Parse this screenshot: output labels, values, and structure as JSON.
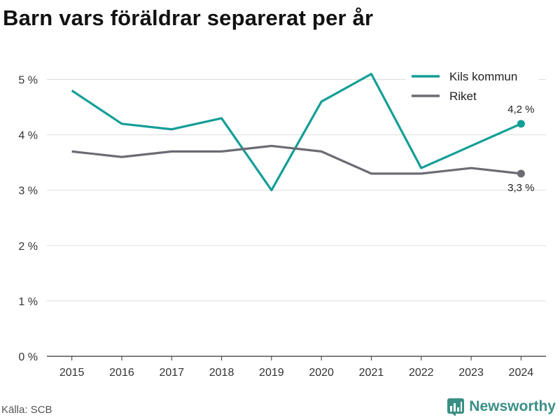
{
  "title": "Barn vars föräldrar separerat per år",
  "source": "Källa: SCB",
  "brand": {
    "name": "Newsworthy",
    "icon": "bar-chart-logo-icon",
    "color": "#3a8f85"
  },
  "chart_data": {
    "type": "line",
    "title": "Barn vars föräldrar separerat per år",
    "x": [
      "2015",
      "2016",
      "2017",
      "2018",
      "2019",
      "2020",
      "2021",
      "2022",
      "2023",
      "2024"
    ],
    "series": [
      {
        "name": "Kils kommun",
        "color": "#139e96",
        "values": [
          4.8,
          4.2,
          4.1,
          4.3,
          3.0,
          4.6,
          5.1,
          3.4,
          3.8,
          4.2
        ]
      },
      {
        "name": "Riket",
        "color": "#6b6b73",
        "values": [
          3.7,
          3.6,
          3.7,
          3.7,
          3.8,
          3.7,
          3.3,
          3.3,
          3.4,
          3.3
        ]
      }
    ],
    "end_labels": [
      "4,2 %",
      "3,3 %"
    ],
    "ylim": [
      0,
      5.5
    ],
    "yticks": [
      0,
      1,
      2,
      3,
      4,
      5
    ],
    "ytick_labels": [
      "0 %",
      "1 %",
      "2 %",
      "3 %",
      "4 %",
      "5 %"
    ],
    "grid": true,
    "legend": "top-right"
  }
}
